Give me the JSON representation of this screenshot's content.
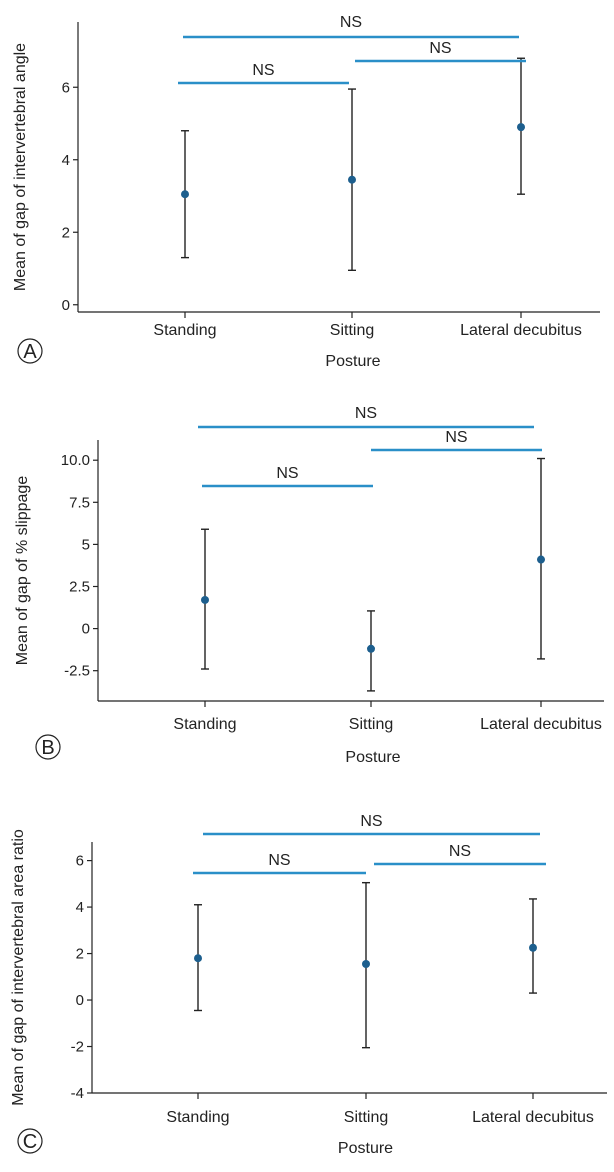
{
  "colors": {
    "significance_bar": "#2a8fc8",
    "point": "#1d5f8e",
    "error_bar": "#222222",
    "axis": "#222222"
  },
  "chart_data": [
    {
      "type": "scatter",
      "panel_label": "A",
      "xlabel": "Posture",
      "ylabel": "Mean of gap of intervertebral angle",
      "categories": [
        "Standing",
        "Sitting",
        "Lateral decubitus"
      ],
      "series": [
        {
          "mean": [
            3.05,
            3.45,
            4.9
          ],
          "lower": [
            1.3,
            0.95,
            3.05
          ],
          "upper": [
            4.8,
            5.95,
            6.8
          ]
        }
      ],
      "yticks": [
        0,
        2,
        4,
        6
      ],
      "ytick_labels": [
        "0",
        "2",
        "4",
        "6"
      ],
      "ylim": [
        -0.2,
        7.8
      ],
      "significance": [
        {
          "from": "Standing",
          "to": "Lateral decubitus",
          "label": "NS"
        },
        {
          "from": "Sitting",
          "to": "Lateral decubitus",
          "label": "NS"
        },
        {
          "from": "Standing",
          "to": "Sitting",
          "label": "NS"
        }
      ]
    },
    {
      "type": "scatter",
      "panel_label": "B",
      "xlabel": "Posture",
      "ylabel": "Mean of gap of % slippage",
      "categories": [
        "Standing",
        "Sitting",
        "Lateral decubitus"
      ],
      "series": [
        {
          "mean": [
            1.7,
            -1.2,
            4.1
          ],
          "lower": [
            -2.4,
            -3.7,
            -1.8
          ],
          "upper": [
            5.9,
            1.05,
            10.1
          ]
        }
      ],
      "yticks": [
        -2.5,
        0,
        2.5,
        5,
        7.5,
        10
      ],
      "ytick_labels": [
        "-2.5",
        "0",
        "2.5",
        "5",
        "7.5",
        "10.0"
      ],
      "ylim": [
        -4.3,
        11.2
      ],
      "significance": [
        {
          "from": "Standing",
          "to": "Lateral decubitus",
          "label": "NS"
        },
        {
          "from": "Sitting",
          "to": "Lateral decubitus",
          "label": "NS"
        },
        {
          "from": "Standing",
          "to": "Sitting",
          "label": "NS"
        }
      ]
    },
    {
      "type": "scatter",
      "panel_label": "C",
      "xlabel": "Posture",
      "ylabel": "Mean of gap of intervertebral area ratio",
      "categories": [
        "Standing",
        "Sitting",
        "Lateral decubitus"
      ],
      "series": [
        {
          "mean": [
            1.8,
            1.55,
            2.25
          ],
          "lower": [
            -0.45,
            -2.05,
            0.3
          ],
          "upper": [
            4.1,
            5.05,
            4.35
          ]
        }
      ],
      "yticks": [
        -4,
        -2,
        0,
        2,
        4,
        6
      ],
      "ytick_labels": [
        "-4",
        "-2",
        "0",
        "2",
        "4",
        "6"
      ],
      "ylim": [
        -4,
        6.8
      ],
      "significance": [
        {
          "from": "Standing",
          "to": "Lateral decubitus",
          "label": "NS"
        },
        {
          "from": "Standing",
          "to": "Sitting",
          "label": "NS"
        },
        {
          "from": "Sitting",
          "to": "Lateral decubitus",
          "label": "NS"
        }
      ]
    }
  ]
}
